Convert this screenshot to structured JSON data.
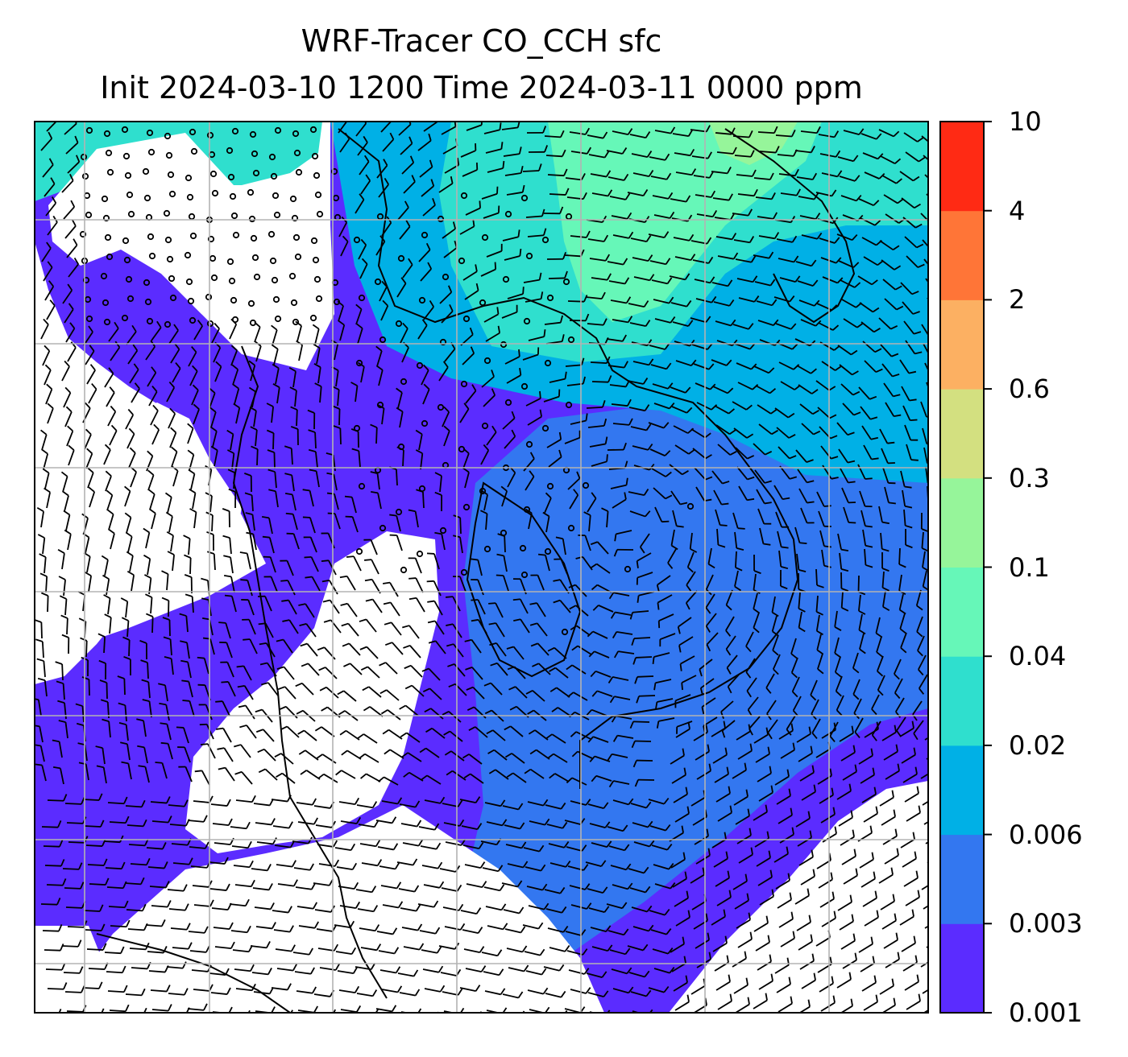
{
  "title": {
    "line1": "WRF-Tracer CO_CCH sfc",
    "line2": "Init 2024-03-10 1200 Time 2024-03-11 0000 ppm"
  },
  "colorbar": {
    "levels": [
      "0.001",
      "0.003",
      "0.006",
      "0.02",
      "0.04",
      "0.1",
      "0.3",
      "0.6",
      "2",
      "4",
      "10"
    ],
    "colors": [
      "#5b2cff",
      "#3377f0",
      "#00b0e6",
      "#2fdfce",
      "#66f7b8",
      "#96f59a",
      "#d3e080",
      "#fcb062",
      "#ff7537",
      "#ff2a14"
    ]
  },
  "map": {
    "field": "CO_CCH surface concentration (ppm)",
    "overlay": "wind barbs",
    "gridlines": true,
    "coastlines": true
  }
}
